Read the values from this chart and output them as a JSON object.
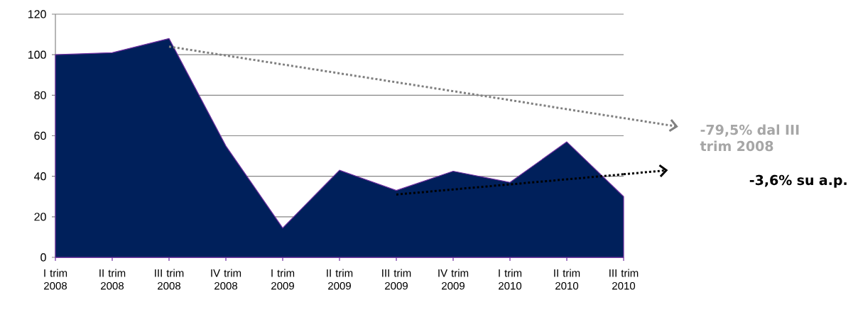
{
  "chart_data": {
    "type": "area",
    "categories": [
      "I trim 2008",
      "II trim 2008",
      "III trim 2008",
      "IV trim 2008",
      "I trim 2009",
      "II trim 2009",
      "III trim 2009",
      "IV trim 2009",
      "I trim 2010",
      "II trim 2010",
      "III trim 2010"
    ],
    "series": [
      {
        "color": "#00205b",
        "values": [
          100,
          101,
          108,
          55,
          14.5,
          43,
          33,
          42.5,
          37,
          57,
          30
        ]
      },
      {
        "type": "line",
        "color": "#808080",
        "line_style": "dotted",
        "values": [
          null,
          null,
          104,
          99.6,
          95.2,
          90.8,
          86.4,
          82,
          77.6,
          73.1,
          68.7
        ]
      },
      {
        "type": "line",
        "color": "#000000",
        "line_style": "dotted",
        "values": [
          null,
          null,
          null,
          null,
          null,
          null,
          31,
          33.5,
          36,
          38.5,
          41
        ]
      }
    ],
    "ylim": [
      0,
      120
    ],
    "yticks": [
      0,
      20,
      40,
      60,
      80,
      100,
      120
    ],
    "grid": "y",
    "annotations": [
      "-79,5% dal III trim 2008",
      "-3,6% su a.p."
    ]
  }
}
